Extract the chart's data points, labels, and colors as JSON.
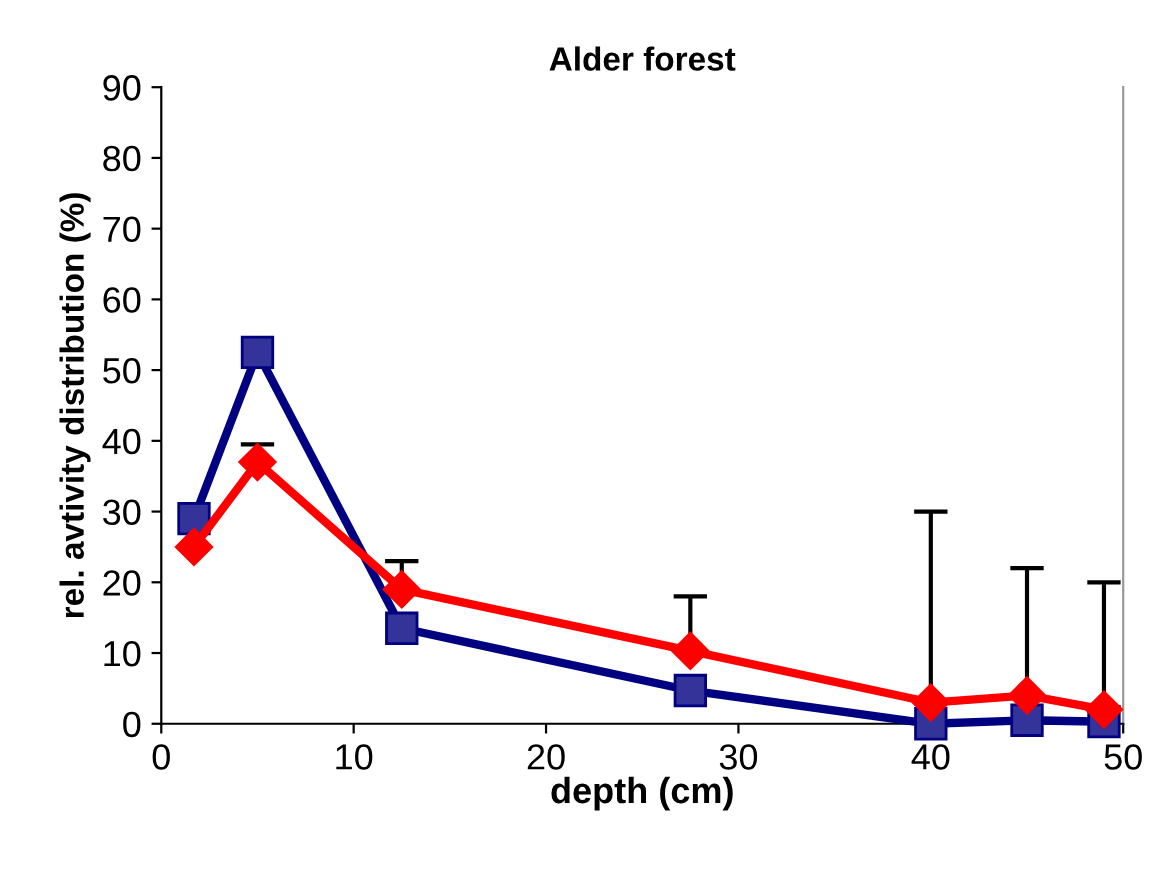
{
  "chart_data": {
    "type": "line",
    "title": "Alder forest",
    "xlabel": "depth (cm)",
    "ylabel": "rel. avtivity distribution (%)",
    "xlim": [
      0,
      50
    ],
    "xticks": [
      0,
      10,
      20,
      30,
      40,
      50
    ],
    "ylim": [
      0,
      90
    ],
    "yticks": [
      0,
      10,
      20,
      30,
      40,
      50,
      60,
      70,
      80,
      90
    ],
    "line_style": "solid",
    "grid": false,
    "series": [
      {
        "color": "#000080",
        "marker": "square",
        "x": [
          1.7,
          5,
          12.5,
          27.5,
          40,
          45,
          49
        ],
        "values": [
          29,
          52.5,
          13.5,
          4.7,
          0,
          0.5,
          0.3
        ]
      },
      {
        "color": "#ff0000",
        "marker": "diamond",
        "x": [
          1.7,
          5,
          12.5,
          27.5,
          40,
          45,
          49
        ],
        "values": [
          25,
          37,
          19,
          10.3,
          3,
          4,
          2
        ],
        "errors": [
          null,
          [
            37,
            39.5
          ],
          [
            19,
            23
          ],
          [
            10.3,
            18
          ],
          [
            3,
            30
          ],
          [
            4,
            22
          ],
          [
            2,
            20
          ]
        ]
      }
    ]
  }
}
